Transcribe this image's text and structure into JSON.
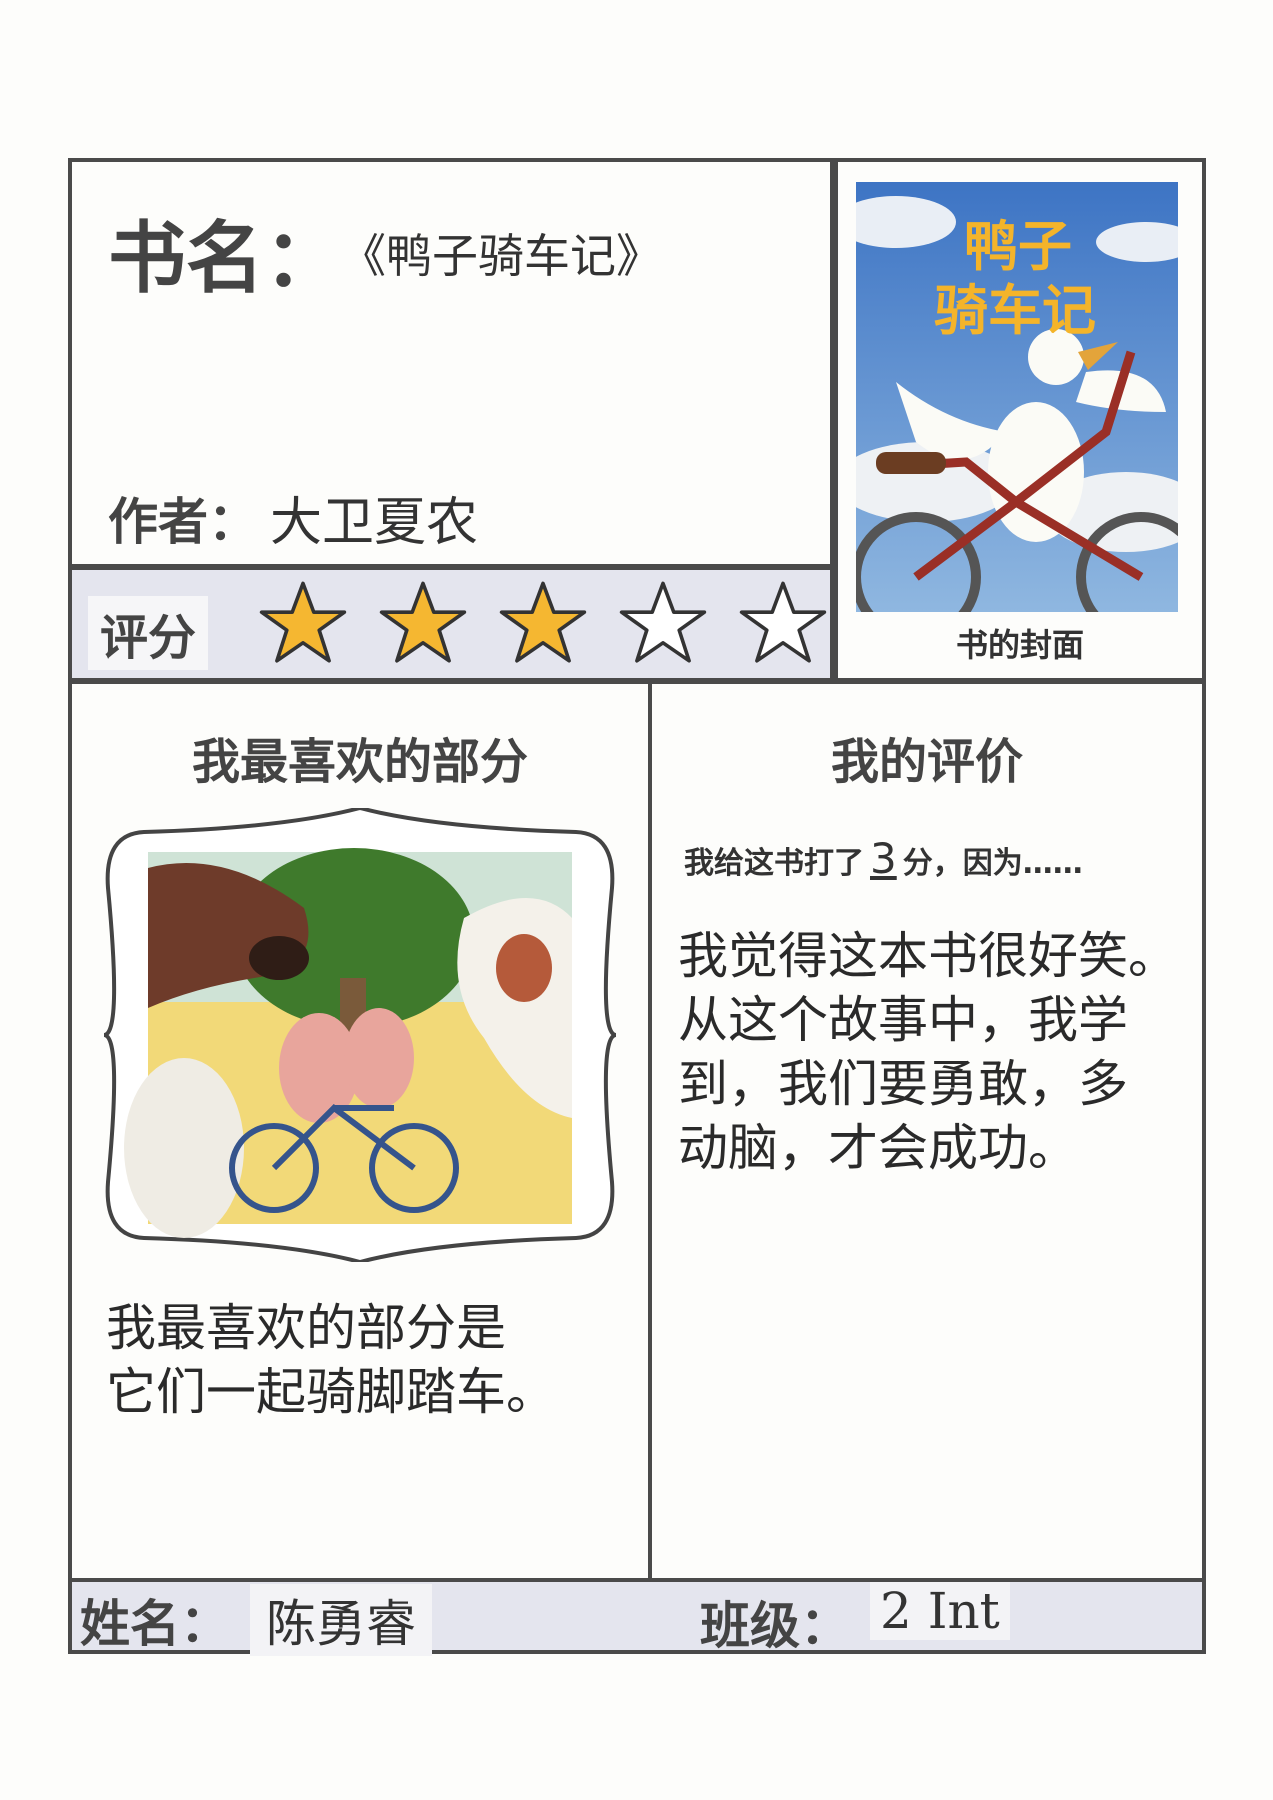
{
  "book": {
    "title_label": "书名：",
    "title_value": "《鸭子骑车记》",
    "author_label": "作者：",
    "author_value": "大卫夏农"
  },
  "rating": {
    "label": "评分",
    "value": 3,
    "max": 5,
    "star_filled_color": "#f5b731",
    "star_outline_color": "#333333"
  },
  "cover": {
    "title_line1": "鸭子",
    "title_line2": "骑车记",
    "caption": "书的封面"
  },
  "favorite": {
    "heading": "我最喜欢的部分",
    "text_line1": "我最喜欢的部分是",
    "text_line2": "它们一起骑脚踏车。"
  },
  "review": {
    "heading": "我的评价",
    "lead_prefix": "我给这书打了",
    "lead_score": "3",
    "lead_suffix": "分，因为……",
    "lines": [
      "我觉得这本书很好笑。",
      "从这个故事中，我学",
      "到，我们要勇敢，多",
      "动脑，才会成功。"
    ]
  },
  "footer": {
    "name_label": "姓名：",
    "name_value": "陈勇睿",
    "class_label": "班级：",
    "class_value": "2 Int"
  }
}
